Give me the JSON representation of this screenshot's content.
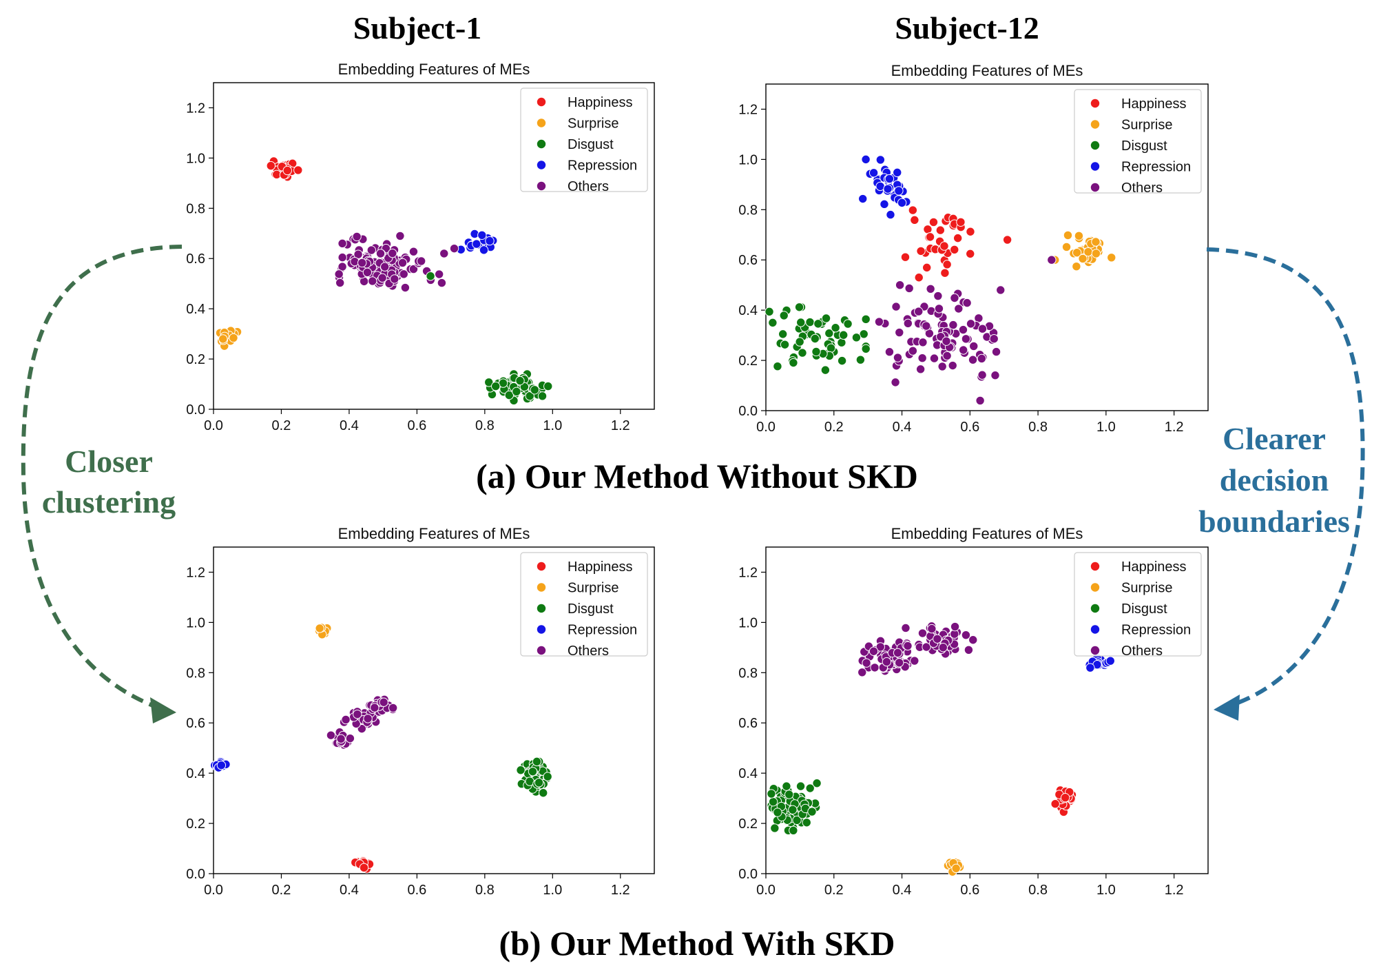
{
  "figure": {
    "col_left_title": "Subject-1",
    "col_right_title": "Subject-12",
    "caption_a": "(a) Our Method Without SKD",
    "caption_b": "(b) Our Method With SKD",
    "left_annotation": [
      "Closer",
      "clustering"
    ],
    "right_annotation": [
      "Clearer",
      "decision",
      "boundaries"
    ],
    "left_annotation_color": "#3f6f4c",
    "right_annotation_color": "#2a6f9b"
  },
  "legend": [
    {
      "label": "Happiness",
      "color": "#ee1c1c"
    },
    {
      "label": "Surprise",
      "color": "#f5a31a"
    },
    {
      "label": "Disgust",
      "color": "#0f7a12"
    },
    {
      "label": "Repression",
      "color": "#1414e6"
    },
    {
      "label": "Others",
      "color": "#7a117e"
    }
  ],
  "chart_data": [
    {
      "type": "scatter",
      "id": "a-s1",
      "title": "Embedding Features of MEs",
      "xlim": [
        0,
        1.3
      ],
      "ylim": [
        0,
        1.3
      ],
      "xticks": [
        "0.0",
        "0.2",
        "0.4",
        "0.6",
        "0.8",
        "1.0",
        "1.2"
      ],
      "yticks": [
        "0.0",
        "0.2",
        "0.4",
        "0.6",
        "0.8",
        "1.0",
        "1.2"
      ],
      "legend_position": "top-right",
      "clusters": [
        {
          "series": "Happiness",
          "cx": 0.2,
          "cy": 0.955,
          "rx": 0.045,
          "ry": 0.035,
          "n": 28
        },
        {
          "series": "Surprise",
          "cx": 0.045,
          "cy": 0.285,
          "rx": 0.025,
          "ry": 0.03,
          "n": 18
        },
        {
          "series": "Disgust",
          "cx": 0.9,
          "cy": 0.085,
          "rx": 0.08,
          "ry": 0.05,
          "n": 55
        },
        {
          "series": "Repression",
          "cx": 0.78,
          "cy": 0.665,
          "rx": 0.05,
          "ry": 0.03,
          "n": 20
        },
        {
          "series": "Others",
          "cx": 0.48,
          "cy": 0.58,
          "rx": 0.1,
          "ry": 0.1,
          "n": 110
        },
        {
          "series": "Others",
          "cx": 0.62,
          "cy": 0.55,
          "rx": 0.08,
          "ry": 0.06,
          "n": 10
        }
      ],
      "points": [
        {
          "series": "Disgust",
          "x": 0.64,
          "y": 0.53
        },
        {
          "series": "Others",
          "x": 0.38,
          "y": 0.66
        },
        {
          "series": "Others",
          "x": 0.68,
          "y": 0.62
        },
        {
          "series": "Others",
          "x": 0.71,
          "y": 0.64
        }
      ]
    },
    {
      "type": "scatter",
      "id": "a-s12",
      "title": "Embedding Features of MEs",
      "xlim": [
        0,
        1.3
      ],
      "ylim": [
        0,
        1.3
      ],
      "xticks": [
        "0.0",
        "0.2",
        "0.4",
        "0.6",
        "0.8",
        "1.0",
        "1.2"
      ],
      "yticks": [
        "0.0",
        "0.2",
        "0.4",
        "0.6",
        "0.8",
        "1.0",
        "1.2"
      ],
      "legend_position": "top-right",
      "clusters": [
        {
          "series": "Repression",
          "cx": 0.35,
          "cy": 0.89,
          "rx": 0.07,
          "ry": 0.1,
          "n": 35
        },
        {
          "series": "Happiness",
          "cx": 0.52,
          "cy": 0.68,
          "rx": 0.1,
          "ry": 0.12,
          "n": 35
        },
        {
          "series": "Surprise",
          "cx": 0.95,
          "cy": 0.64,
          "rx": 0.06,
          "ry": 0.06,
          "n": 35
        },
        {
          "series": "Disgust",
          "cx": 0.14,
          "cy": 0.28,
          "rx": 0.14,
          "ry": 0.12,
          "n": 55
        },
        {
          "series": "Others",
          "cx": 0.52,
          "cy": 0.28,
          "rx": 0.17,
          "ry": 0.2,
          "n": 90
        }
      ],
      "points": [
        {
          "series": "Happiness",
          "x": 0.71,
          "y": 0.68
        },
        {
          "series": "Happiness",
          "x": 0.45,
          "y": 0.53
        },
        {
          "series": "Surprise",
          "x": 0.85,
          "y": 0.6
        },
        {
          "series": "Others",
          "x": 0.84,
          "y": 0.6
        },
        {
          "series": "Others",
          "x": 0.69,
          "y": 0.48
        },
        {
          "series": "Others",
          "x": 0.63,
          "y": 0.04
        },
        {
          "series": "Disgust",
          "x": 0.02,
          "y": 0.35
        }
      ]
    },
    {
      "type": "scatter",
      "id": "b-s1",
      "title": "Embedding Features of MEs",
      "xlim": [
        0,
        1.3
      ],
      "ylim": [
        0,
        1.3
      ],
      "xticks": [
        "0.0",
        "0.2",
        "0.4",
        "0.6",
        "0.8",
        "1.0",
        "1.2"
      ],
      "yticks": [
        "0.0",
        "0.2",
        "0.4",
        "0.6",
        "0.8",
        "1.0",
        "1.2"
      ],
      "legend_position": "top-right",
      "clusters": [
        {
          "series": "Surprise",
          "cx": 0.32,
          "cy": 0.975,
          "rx": 0.015,
          "ry": 0.025,
          "n": 10
        },
        {
          "series": "Repression",
          "cx": 0.02,
          "cy": 0.43,
          "rx": 0.015,
          "ry": 0.015,
          "n": 12
        },
        {
          "series": "Disgust",
          "cx": 0.95,
          "cy": 0.38,
          "rx": 0.04,
          "ry": 0.06,
          "n": 55
        },
        {
          "series": "Happiness",
          "cx": 0.44,
          "cy": 0.035,
          "rx": 0.02,
          "ry": 0.03,
          "n": 14
        },
        {
          "series": "Others",
          "cx": 0.37,
          "cy": 0.53,
          "rx": 0.03,
          "ry": 0.03,
          "n": 18
        },
        {
          "series": "Others",
          "cx": 0.44,
          "cy": 0.61,
          "rx": 0.05,
          "ry": 0.04,
          "n": 40
        },
        {
          "series": "Others",
          "cx": 0.49,
          "cy": 0.66,
          "rx": 0.04,
          "ry": 0.03,
          "n": 30
        }
      ],
      "points": []
    },
    {
      "type": "scatter",
      "id": "b-s12",
      "title": "Embedding Features of MEs",
      "xlim": [
        0,
        1.3
      ],
      "ylim": [
        0,
        1.3
      ],
      "xticks": [
        "0.0",
        "0.2",
        "0.4",
        "0.6",
        "0.8",
        "1.0",
        "1.2"
      ],
      "yticks": [
        "0.0",
        "0.2",
        "0.4",
        "0.6",
        "0.8",
        "1.0",
        "1.2"
      ],
      "legend_position": "top-right",
      "clusters": [
        {
          "series": "Others",
          "cx": 0.36,
          "cy": 0.86,
          "rx": 0.07,
          "ry": 0.06,
          "n": 55
        },
        {
          "series": "Others",
          "cx": 0.51,
          "cy": 0.93,
          "rx": 0.09,
          "ry": 0.05,
          "n": 60
        },
        {
          "series": "Repression",
          "cx": 0.98,
          "cy": 0.84,
          "rx": 0.03,
          "ry": 0.02,
          "n": 16
        },
        {
          "series": "Disgust",
          "cx": 0.07,
          "cy": 0.26,
          "rx": 0.07,
          "ry": 0.08,
          "n": 70
        },
        {
          "series": "Happiness",
          "cx": 0.875,
          "cy": 0.295,
          "rx": 0.025,
          "ry": 0.045,
          "n": 22
        },
        {
          "series": "Surprise",
          "cx": 0.55,
          "cy": 0.035,
          "rx": 0.025,
          "ry": 0.025,
          "n": 12
        }
      ],
      "points": [
        {
          "series": "Disgust",
          "x": 0.15,
          "y": 0.36
        },
        {
          "series": "Disgust",
          "x": 0.13,
          "y": 0.34
        }
      ]
    }
  ]
}
